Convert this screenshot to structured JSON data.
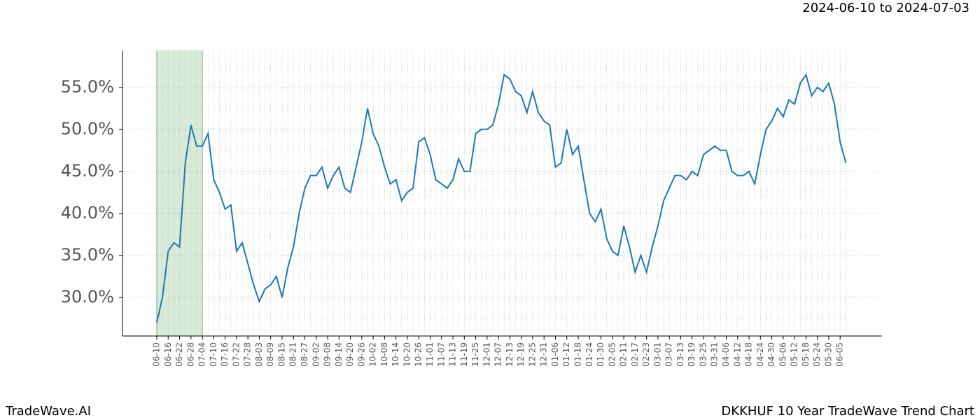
{
  "chart_data": {
    "type": "line",
    "range_label": "2024-06-10 to 2024-07-03",
    "brand": "TradeWave.AI",
    "title": "DKKHUF 10 Year TradeWave Trend Chart",
    "x": [
      "06-10",
      "06-13",
      "06-16",
      "06-19",
      "06-22",
      "06-25",
      "06-28",
      "07-01",
      "07-04",
      "07-07",
      "07-10",
      "07-13",
      "07-16",
      "07-19",
      "07-22",
      "07-25",
      "07-28",
      "07-31",
      "08-03",
      "08-06",
      "08-09",
      "08-12",
      "08-15",
      "08-18",
      "08-21",
      "08-24",
      "08-27",
      "08-30",
      "09-02",
      "09-05",
      "09-08",
      "09-11",
      "09-14",
      "09-17",
      "09-20",
      "09-23",
      "09-26",
      "09-29",
      "10-02",
      "10-05",
      "10-08",
      "10-11",
      "10-14",
      "10-17",
      "10-20",
      "10-23",
      "10-26",
      "10-29",
      "11-01",
      "11-04",
      "11-07",
      "11-10",
      "11-13",
      "11-16",
      "11-19",
      "11-22",
      "11-25",
      "11-28",
      "12-01",
      "12-04",
      "12-07",
      "12-10",
      "12-13",
      "12-16",
      "12-19",
      "12-22",
      "12-25",
      "12-28",
      "12-31",
      "01-03",
      "01-06",
      "01-09",
      "01-12",
      "01-15",
      "01-18",
      "01-21",
      "01-24",
      "01-27",
      "01-30",
      "02-02",
      "02-05",
      "02-08",
      "02-11",
      "02-14",
      "02-17",
      "02-20",
      "02-23",
      "02-26",
      "03-01",
      "03-04",
      "03-07",
      "03-10",
      "03-13",
      "03-16",
      "03-19",
      "03-22",
      "03-25",
      "03-28",
      "03-31",
      "04-03",
      "04-06",
      "04-09",
      "04-12",
      "04-15",
      "04-18",
      "04-21",
      "04-24",
      "04-27",
      "04-30",
      "05-03",
      "05-06",
      "05-09",
      "05-12",
      "05-15",
      "05-18",
      "05-21",
      "05-24",
      "05-27",
      "05-30",
      "06-02",
      "06-05",
      "06-08"
    ],
    "values": [
      27.0,
      30,
      35.5,
      36.5,
      36,
      46,
      50.5,
      48,
      48,
      49.5,
      44,
      42.5,
      40.5,
      41,
      35.5,
      36.5,
      34,
      31.5,
      29.5,
      31,
      31.5,
      32.5,
      30,
      33.5,
      36,
      40,
      43,
      44.5,
      44.5,
      45.5,
      43,
      44.5,
      45.5,
      43,
      42.5,
      45.5,
      48.5,
      52.5,
      49.5,
      48,
      45.5,
      43.5,
      44,
      41.5,
      42.5,
      43,
      48.5,
      49,
      47,
      44,
      43.5,
      43,
      44,
      46.5,
      45,
      45,
      49.5,
      50,
      50,
      50.5,
      53,
      56.5,
      56,
      54.5,
      54,
      52,
      54.5,
      52,
      51,
      50.5,
      45.5,
      46,
      50,
      47,
      48,
      44,
      40,
      39,
      40.5,
      37,
      35.5,
      35,
      38.5,
      36,
      33,
      35,
      33,
      36,
      38.5,
      41.5,
      43,
      44.5,
      44.5,
      44,
      45,
      44.5,
      47,
      47.5,
      48,
      47.5,
      47.5,
      45,
      44.5,
      44.5,
      45,
      43.5,
      47,
      50,
      51,
      52.5,
      51.5,
      53.5,
      53,
      55.5,
      56.5,
      54,
      55,
      54.5,
      55.5,
      53,
      48.5,
      46
    ],
    "color": "#1f77b4",
    "highlight": [
      "06-10",
      "07-04"
    ],
    "highlight_color": "#d8ead8",
    "xticks": [
      "06-10",
      "06-16",
      "06-22",
      "06-28",
      "07-04",
      "07-10",
      "07-16",
      "07-22",
      "07-28",
      "08-03",
      "08-09",
      "08-15",
      "08-21",
      "08-27",
      "09-02",
      "09-08",
      "09-14",
      "09-20",
      "09-26",
      "10-02",
      "10-08",
      "10-14",
      "10-20",
      "10-26",
      "11-01",
      "11-07",
      "11-13",
      "11-19",
      "11-25",
      "12-01",
      "12-07",
      "12-13",
      "12-19",
      "12-25",
      "12-31",
      "01-06",
      "01-12",
      "01-18",
      "01-24",
      "01-30",
      "02-05",
      "02-11",
      "02-17",
      "02-23",
      "03-01",
      "03-07",
      "03-13",
      "03-19",
      "03-25",
      "03-31",
      "04-06",
      "04-12",
      "04-18",
      "04-24",
      "04-30",
      "05-06",
      "05-12",
      "05-18",
      "05-24",
      "05-30",
      "06-05"
    ],
    "ylim": [
      25.4,
      59.4
    ],
    "yticks": [
      {
        "value": 30,
        "label": "30.0%"
      },
      {
        "value": 35,
        "label": "35.0%"
      },
      {
        "value": 40,
        "label": "40.0%"
      },
      {
        "value": 45,
        "label": "45.0%"
      },
      {
        "value": 50,
        "label": "50.0%"
      },
      {
        "value": 55,
        "label": "55.0%"
      }
    ],
    "grid": true
  }
}
